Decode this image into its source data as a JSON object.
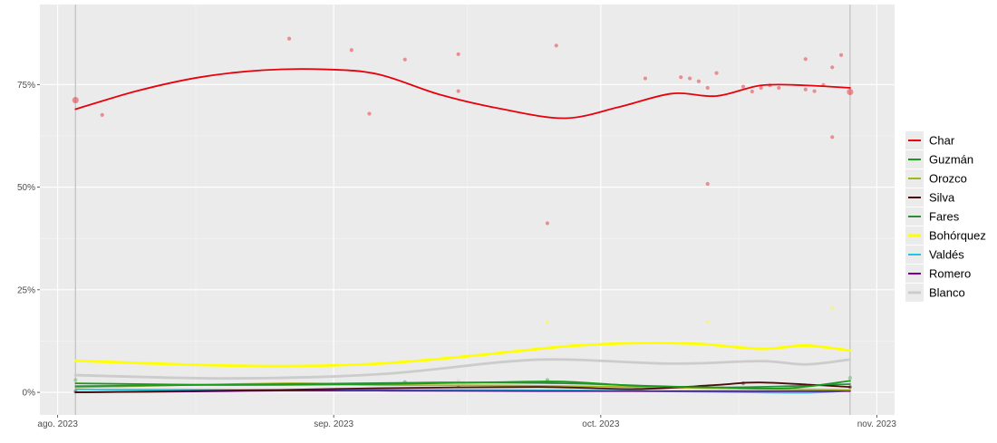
{
  "chart_data": {
    "type": "line",
    "title": "",
    "xlabel": "",
    "ylabel": "",
    "x_range": [
      "2023-07-30",
      "2023-11-03"
    ],
    "y_range": [
      -0.055,
      0.945
    ],
    "x_ticks": [
      {
        "date": "2023-08-01",
        "label": "ago. 2023"
      },
      {
        "date": "2023-09-01",
        "label": "sep. 2023"
      },
      {
        "date": "2023-10-01",
        "label": "oct. 2023"
      },
      {
        "date": "2023-11-01",
        "label": "nov. 2023"
      }
    ],
    "y_ticks": [
      {
        "value": 0,
        "label": "0%"
      },
      {
        "value": 0.25,
        "label": "25%"
      },
      {
        "value": 0.5,
        "label": "50%"
      },
      {
        "value": 0.75,
        "label": "75%"
      }
    ],
    "reference_lines": [
      "2023-08-03",
      "2023-10-29"
    ],
    "grid": true,
    "legend_position": "right",
    "series": [
      {
        "name": "Char",
        "color": "#e8000b",
        "x": [
          "2023-08-03",
          "2023-08-10",
          "2023-08-17",
          "2023-08-24",
          "2023-08-31",
          "2023-09-06",
          "2023-09-13",
          "2023-09-20",
          "2023-09-27",
          "2023-10-03",
          "2023-10-09",
          "2023-10-14",
          "2023-10-19",
          "2023-10-24",
          "2023-10-29"
        ],
        "y": [
          0.69,
          0.735,
          0.768,
          0.785,
          0.787,
          0.775,
          0.725,
          0.69,
          0.668,
          0.695,
          0.728,
          0.722,
          0.748,
          0.748,
          0.742
        ]
      },
      {
        "name": "Guzmán",
        "color": "#1a9c1a",
        "x": [
          "2023-08-03",
          "2023-08-20",
          "2023-09-06",
          "2023-09-20",
          "2023-09-27",
          "2023-10-05",
          "2023-10-14",
          "2023-10-22",
          "2023-10-29"
        ],
        "y": [
          0.022,
          0.018,
          0.02,
          0.025,
          0.026,
          0.016,
          0.012,
          0.01,
          0.028
        ]
      },
      {
        "name": "Orozco",
        "color": "#a6b51c",
        "x": [
          "2023-08-03",
          "2023-08-26",
          "2023-09-06",
          "2023-09-24",
          "2023-10-14",
          "2023-10-29"
        ],
        "y": [
          0.012,
          0.022,
          0.018,
          0.016,
          0.01,
          0.006
        ]
      },
      {
        "name": "Silva",
        "color": "#4a0d0d",
        "x": [
          "2023-08-03",
          "2023-08-26",
          "2023-09-06",
          "2023-09-24",
          "2023-10-05",
          "2023-10-14",
          "2023-10-19",
          "2023-10-29"
        ],
        "y": [
          0.0,
          0.006,
          0.01,
          0.013,
          0.008,
          0.018,
          0.024,
          0.013
        ]
      },
      {
        "name": "Fares",
        "color": "#2e8b3e",
        "x": [
          "2023-08-03",
          "2023-08-26",
          "2023-09-13",
          "2023-09-27",
          "2023-10-14",
          "2023-10-29"
        ],
        "y": [
          0.015,
          0.02,
          0.024,
          0.022,
          0.012,
          0.02
        ]
      },
      {
        "name": "Bohórquez",
        "color": "#ffff00",
        "x": [
          "2023-08-03",
          "2023-08-15",
          "2023-08-26",
          "2023-09-06",
          "2023-09-17",
          "2023-09-27",
          "2023-10-05",
          "2023-10-12",
          "2023-10-19",
          "2023-10-24",
          "2023-10-29"
        ],
        "y": [
          0.077,
          0.068,
          0.064,
          0.07,
          0.09,
          0.112,
          0.12,
          0.118,
          0.106,
          0.114,
          0.102
        ]
      },
      {
        "name": "Valdés",
        "color": "#1fc8e0",
        "x": [
          "2023-08-03",
          "2023-08-26",
          "2023-09-13",
          "2023-09-27",
          "2023-10-14",
          "2023-10-24",
          "2023-10-29"
        ],
        "y": [
          0.007,
          0.006,
          0.006,
          0.005,
          0.001,
          -0.001,
          0.004
        ]
      },
      {
        "name": "Romero",
        "color": "#7a0099",
        "x": [
          "2023-08-03",
          "2023-08-15",
          "2023-08-26",
          "2023-09-06",
          "2023-09-24",
          "2023-10-29"
        ],
        "y": [
          0.0,
          0.002,
          0.004,
          0.004,
          0.003,
          0.003
        ]
      },
      {
        "name": "Blanco",
        "color": "#cccccc",
        "x": [
          "2023-08-03",
          "2023-08-20",
          "2023-09-06",
          "2023-09-20",
          "2023-09-27",
          "2023-10-09",
          "2023-10-19",
          "2023-10-24",
          "2023-10-29"
        ],
        "y": [
          0.042,
          0.034,
          0.044,
          0.074,
          0.08,
          0.07,
          0.076,
          0.068,
          0.08
        ]
      }
    ],
    "points": [
      {
        "series": "Char",
        "large": true,
        "data": [
          [
            "2023-08-03",
            0.712
          ],
          [
            "2023-10-29",
            0.732
          ]
        ]
      },
      {
        "series": "Char",
        "data": [
          [
            "2023-08-06",
            0.676
          ],
          [
            "2023-08-27",
            0.862
          ],
          [
            "2023-09-03",
            0.834
          ],
          [
            "2023-09-05",
            0.679
          ],
          [
            "2023-09-09",
            0.811
          ],
          [
            "2023-09-15",
            0.824
          ],
          [
            "2023-09-15",
            0.734
          ],
          [
            "2023-09-25",
            0.412
          ],
          [
            "2023-09-26",
            0.845
          ],
          [
            "2023-10-06",
            0.765
          ],
          [
            "2023-10-10",
            0.768
          ],
          [
            "2023-10-11",
            0.765
          ],
          [
            "2023-10-12",
            0.758
          ],
          [
            "2023-10-13",
            0.742
          ],
          [
            "2023-10-14",
            0.778
          ],
          [
            "2023-10-17",
            0.745
          ],
          [
            "2023-10-18",
            0.733
          ],
          [
            "2023-10-19",
            0.742
          ],
          [
            "2023-10-20",
            0.748
          ],
          [
            "2023-10-21",
            0.742
          ],
          [
            "2023-10-13",
            0.508
          ],
          [
            "2023-10-24",
            0.812
          ],
          [
            "2023-10-24",
            0.738
          ],
          [
            "2023-10-25",
            0.734
          ],
          [
            "2023-10-26",
            0.749
          ],
          [
            "2023-10-27",
            0.792
          ],
          [
            "2023-10-28",
            0.822
          ],
          [
            "2023-10-27",
            0.622
          ]
        ]
      },
      {
        "series": "Guzmán",
        "data": [
          [
            "2023-08-03",
            0.03
          ],
          [
            "2023-09-09",
            0.025
          ],
          [
            "2023-09-25",
            0.03
          ],
          [
            "2023-10-29",
            0.035
          ]
        ]
      },
      {
        "series": "Silva",
        "data": [
          [
            "2023-08-03",
            0.002
          ],
          [
            "2023-09-15",
            0.015
          ],
          [
            "2023-10-17",
            0.022
          ],
          [
            "2023-10-29",
            0.013
          ]
        ]
      },
      {
        "series": "Bohórquez",
        "data": [
          [
            "2023-09-25",
            0.17
          ],
          [
            "2023-10-13",
            0.172
          ],
          [
            "2023-10-27",
            0.205
          ]
        ]
      },
      {
        "series": "Blanco",
        "data": [
          [
            "2023-08-03",
            0.03
          ],
          [
            "2023-09-15",
            0.028
          ],
          [
            "2023-10-29",
            0.034
          ]
        ]
      }
    ]
  }
}
